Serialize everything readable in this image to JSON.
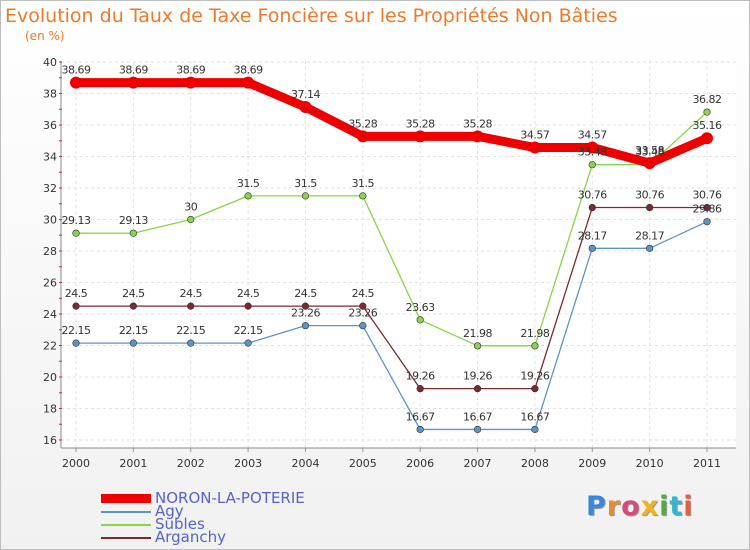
{
  "chart_data": {
    "type": "line",
    "title": "Evolution du Taux de Taxe Foncière sur les Propriétés Non Bâties",
    "subtitle": "(en %)",
    "xlabel": "",
    "ylabel": "",
    "ylim": [
      16,
      40
    ],
    "yticks": [
      "16",
      "18",
      "20",
      "22",
      "24",
      "26",
      "28",
      "30",
      "32",
      "34",
      "36",
      "38",
      "40"
    ],
    "categories": [
      "2000",
      "2001",
      "2002",
      "2003",
      "2004",
      "2005",
      "2006",
      "2007",
      "2008",
      "2009",
      "2010",
      "2011"
    ],
    "series": [
      {
        "name": "NORON-LA-POTERIE",
        "color": "#ee0000",
        "values": [
          38.69,
          38.69,
          38.69,
          38.69,
          37.14,
          35.28,
          35.28,
          35.28,
          34.57,
          34.57,
          33.58,
          35.16
        ],
        "labels": [
          "38.69",
          "38.69",
          "38.69",
          "38.69",
          "37.14",
          "35.28",
          "35.28",
          "35.28",
          "34.57",
          "34.57",
          "33.58",
          "35.16"
        ]
      },
      {
        "name": "Agy",
        "color": "#5b95c8",
        "values": [
          22.15,
          22.15,
          22.15,
          22.15,
          23.26,
          23.26,
          16.67,
          16.67,
          16.67,
          28.17,
          28.17,
          29.86
        ],
        "labels": [
          "22.15",
          "22.15",
          "22.15",
          "22.15",
          "23.26",
          "23.26",
          "16.67",
          "16.67",
          "16.67",
          "28.17",
          "28.17",
          "29.86"
        ]
      },
      {
        "name": "Subles",
        "color": "#88d44a",
        "values": [
          29.13,
          29.13,
          30,
          31.5,
          31.5,
          31.5,
          23.63,
          21.98,
          21.98,
          33.48,
          33.48,
          36.82
        ],
        "labels": [
          "29.13",
          "29.13",
          "30",
          "31.5",
          "31.5",
          "31.5",
          "23.63",
          "21.98",
          "21.98",
          "33.48",
          "33.48",
          "36.82"
        ]
      },
      {
        "name": "Arganchy",
        "color": "#7a2a30",
        "values": [
          24.5,
          24.5,
          24.5,
          24.5,
          24.5,
          24.5,
          19.26,
          19.26,
          19.26,
          30.76,
          30.76,
          30.76
        ],
        "labels": [
          "24.5",
          "24.5",
          "24.5",
          "24.5",
          "24.5",
          "24.5",
          "19.26",
          "19.26",
          "19.26",
          "30.76",
          "30.76",
          "30.76"
        ]
      }
    ],
    "legend": "bottom-left",
    "grid": true
  },
  "logo": {
    "text": "Proxiti"
  }
}
